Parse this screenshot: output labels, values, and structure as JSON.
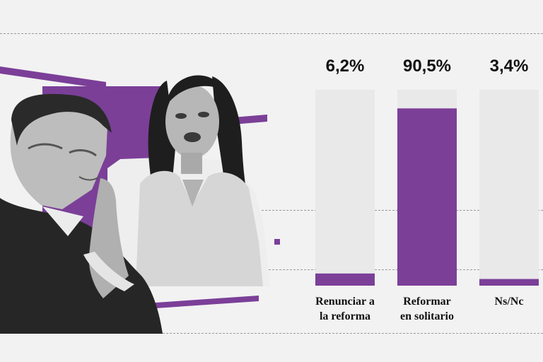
{
  "colors": {
    "accent": "#7b3f98",
    "bar_background": "#e9e9e9",
    "page_background": "#f2f2f2"
  },
  "collage": {
    "icons": [
      "man-in-suit-photo",
      "woman-speaking-photo"
    ]
  },
  "chart_data": {
    "type": "bar",
    "categories": [
      "Renunciar a\nla reforma",
      "Reformar\nen solitario",
      "Ns/Nc"
    ],
    "values": [
      6.2,
      90.5,
      3.4
    ],
    "value_labels": [
      "6,2%",
      "90,5%",
      "3,4%"
    ],
    "ylim": [
      0,
      100
    ],
    "grid": true
  }
}
